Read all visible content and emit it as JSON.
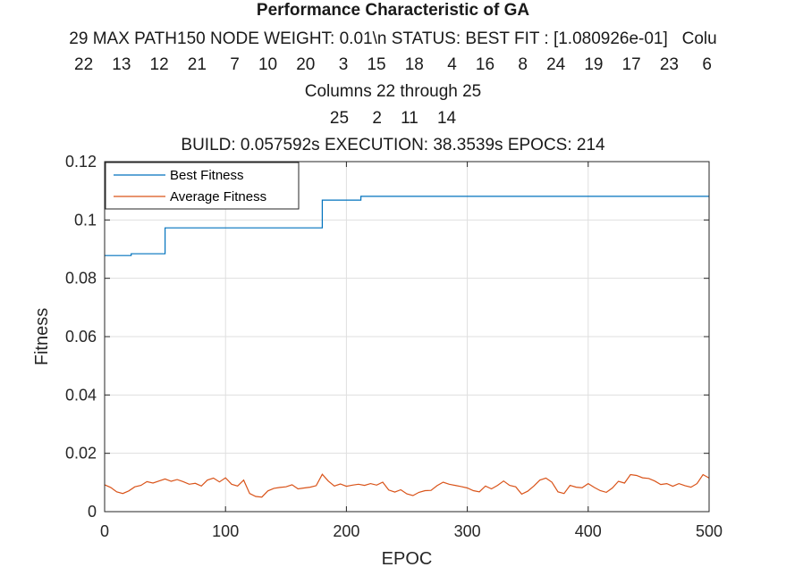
{
  "title_lines": [
    "Performance Characteristic of GA",
    "29 MAX PATH150 NODE WEIGHT: 0.01\\n STATUS: BEST FIT : [1.080926e-01]   Colu",
    "22    13    12    21     7    10    20     3    15    18     4    16     8    24    19    17    23     6",
    "Columns 22 through 25",
    "25     2    11    14",
    "BUILD: 0.057592s EXECUTION: 38.3539s EPOCS: 214"
  ],
  "colors": {
    "best": "#0072BD",
    "average": "#D95319",
    "axis": "#262626",
    "grid": "#dfdfdf"
  },
  "chart_data": {
    "type": "line",
    "title": "Performance Characteristic of GA",
    "xlabel": "EPOC",
    "ylabel": "Fitness",
    "xlim": [
      0,
      500
    ],
    "ylim": [
      0,
      0.12
    ],
    "xticks": [
      0,
      100,
      200,
      300,
      400,
      500
    ],
    "xtick_labels": [
      "0",
      "100",
      "200",
      "300",
      "400",
      "500"
    ],
    "yticks": [
      0,
      0.02,
      0.04,
      0.06,
      0.08,
      0.1,
      0.12
    ],
    "ytick_labels": [
      "0",
      "0.02",
      "0.04",
      "0.06",
      "0.08",
      "0.1",
      "0.12"
    ],
    "grid": true,
    "legend_position": "top-left",
    "series": [
      {
        "name": "Best Fitness",
        "x": [
          0,
          22,
          22,
          50,
          50,
          180,
          180,
          212,
          212,
          500
        ],
        "y": [
          0.0878,
          0.0878,
          0.0884,
          0.0884,
          0.0973,
          0.0973,
          0.1068,
          0.1068,
          0.1081,
          0.1081
        ]
      },
      {
        "name": "Average Fitness",
        "x": [
          0,
          5,
          10,
          15,
          20,
          25,
          30,
          35,
          40,
          45,
          50,
          55,
          60,
          65,
          70,
          75,
          80,
          85,
          90,
          95,
          100,
          105,
          110,
          115,
          120,
          125,
          130,
          135,
          140,
          145,
          150,
          155,
          160,
          165,
          170,
          175,
          180,
          185,
          190,
          195,
          200,
          205,
          210,
          215,
          220,
          225,
          230,
          235,
          240,
          245,
          250,
          255,
          260,
          265,
          270,
          275,
          280,
          285,
          290,
          295,
          300,
          305,
          310,
          315,
          320,
          325,
          330,
          335,
          340,
          345,
          350,
          355,
          360,
          365,
          370,
          375,
          380,
          385,
          390,
          395,
          400,
          405,
          410,
          415,
          420,
          425,
          430,
          435,
          440,
          445,
          450,
          455,
          460,
          465,
          470,
          475,
          480,
          485,
          490,
          495,
          500
        ],
        "y": [
          0.0092,
          0.0083,
          0.0068,
          0.0062,
          0.0071,
          0.0085,
          0.009,
          0.0103,
          0.0098,
          0.0105,
          0.0112,
          0.0104,
          0.011,
          0.0103,
          0.0094,
          0.0097,
          0.0088,
          0.0108,
          0.0115,
          0.0102,
          0.0116,
          0.0094,
          0.0088,
          0.0108,
          0.0062,
          0.0052,
          0.005,
          0.0071,
          0.008,
          0.0083,
          0.0085,
          0.0092,
          0.0078,
          0.0081,
          0.0084,
          0.0089,
          0.0128,
          0.0105,
          0.0088,
          0.0095,
          0.0087,
          0.0091,
          0.0094,
          0.009,
          0.0096,
          0.0091,
          0.0101,
          0.0074,
          0.0067,
          0.0075,
          0.0061,
          0.0055,
          0.0066,
          0.0072,
          0.0073,
          0.0089,
          0.0101,
          0.0094,
          0.009,
          0.0086,
          0.0081,
          0.0072,
          0.0068,
          0.0088,
          0.0078,
          0.009,
          0.0105,
          0.009,
          0.0085,
          0.006,
          0.007,
          0.0088,
          0.0108,
          0.0115,
          0.0101,
          0.0068,
          0.0062,
          0.009,
          0.0084,
          0.0082,
          0.0096,
          0.0083,
          0.0072,
          0.0066,
          0.0081,
          0.0104,
          0.0098,
          0.0127,
          0.0124,
          0.0116,
          0.0114,
          0.0105,
          0.0093,
          0.0096,
          0.0087,
          0.0096,
          0.0089,
          0.0084,
          0.0096,
          0.0127,
          0.0115
        ]
      }
    ]
  }
}
